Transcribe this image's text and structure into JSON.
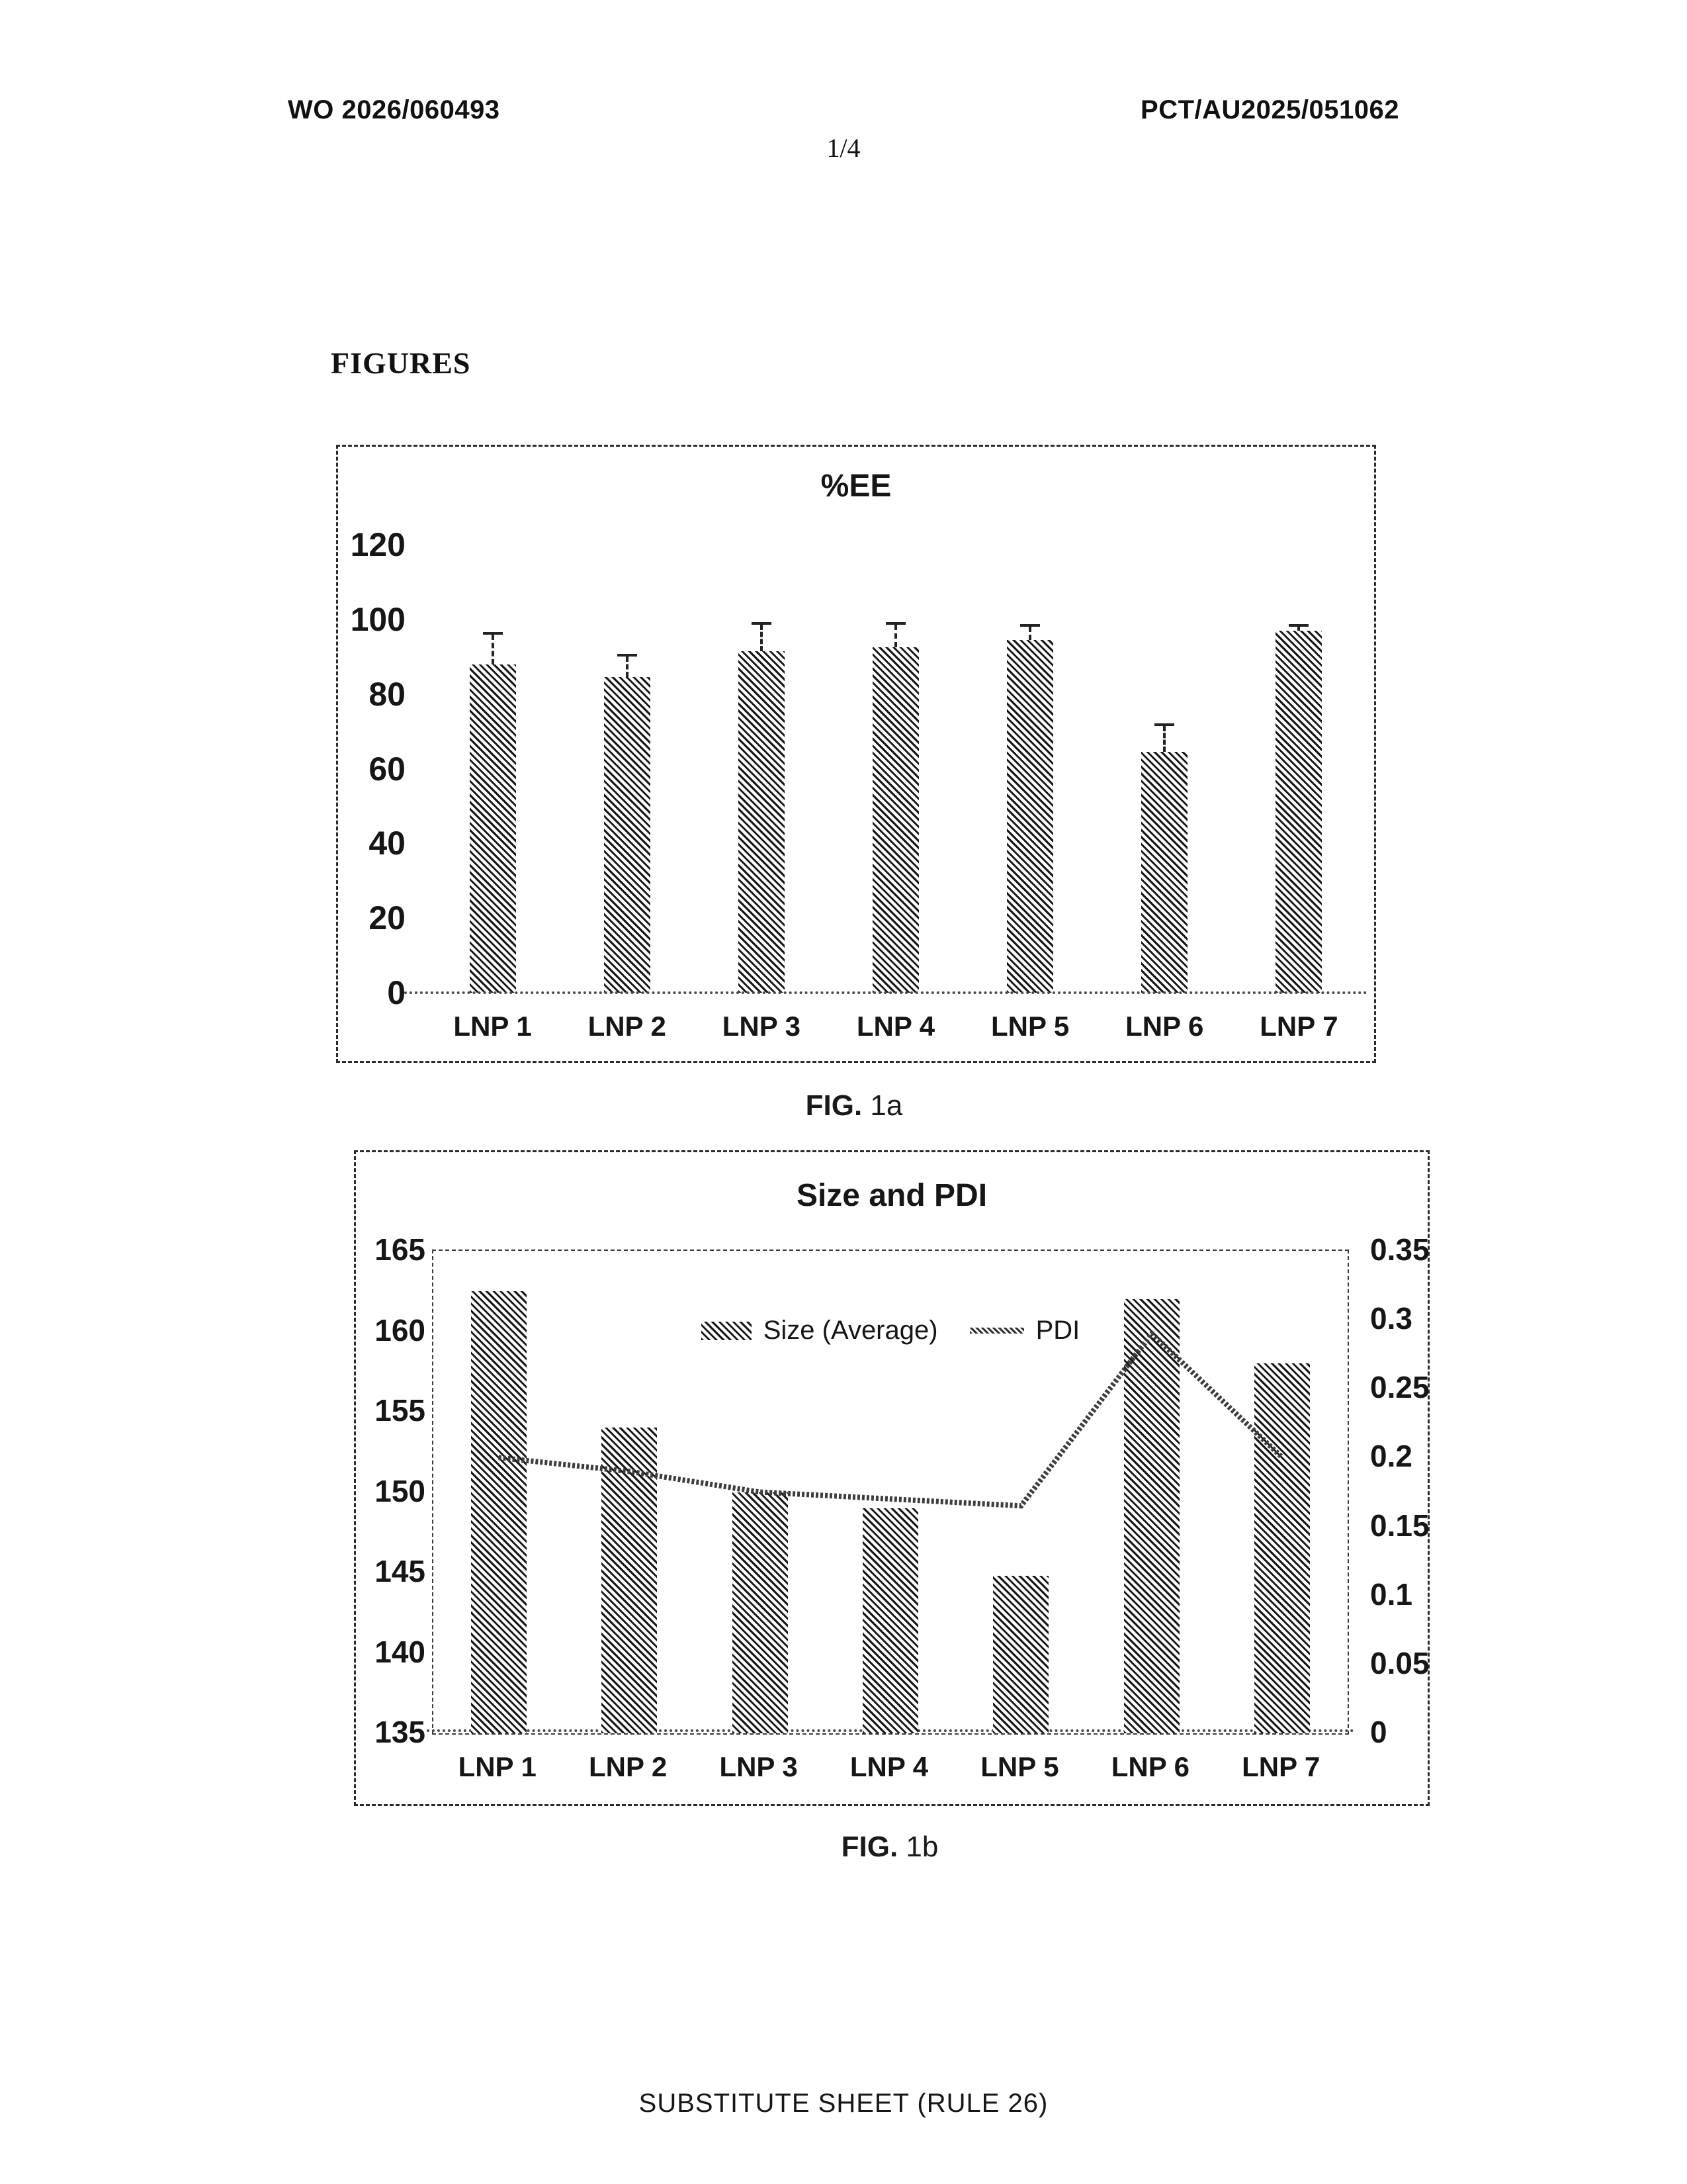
{
  "header": {
    "left": "WO 2026/060493",
    "right": "PCT/AU2025/051062",
    "page_number": "1/4"
  },
  "section_heading": "FIGURES",
  "figures": [
    {
      "caption_prefix": "FIG.",
      "caption_label": "1a"
    },
    {
      "caption_prefix": "FIG.",
      "caption_label": "1b"
    }
  ],
  "footer": "SUBSTITUTE SHEET (RULE 26)",
  "chart_data": [
    {
      "type": "bar",
      "title": "%EE",
      "categories": [
        "LNP 1",
        "LNP 2",
        "LNP 3",
        "LNP 4",
        "LNP 5",
        "LNP 6",
        "LNP 7"
      ],
      "values": [
        88,
        84.5,
        91.5,
        92.5,
        94.5,
        64.5,
        97
      ],
      "error_plus": [
        8,
        5.5,
        7,
        6,
        3.5,
        7,
        1
      ],
      "xlabel": "",
      "ylabel": "",
      "ylim": [
        0,
        120
      ],
      "yticks": [
        "0",
        "20",
        "40",
        "60",
        "80",
        "100",
        "120"
      ],
      "grid": false,
      "legend_position": "none",
      "bar_style": "diagonal-hatch",
      "ink_color": "#161616"
    },
    {
      "type": "combo-bar-line",
      "title": "Size and PDI",
      "categories": [
        "LNP 1",
        "LNP 2",
        "LNP 3",
        "LNP 4",
        "LNP 5",
        "LNP 6",
        "LNP 7"
      ],
      "series": [
        {
          "name": "Size (Average)",
          "type": "bar",
          "axis": "left",
          "values": [
            162.5,
            154,
            150,
            149,
            144.8,
            162,
            158
          ]
        },
        {
          "name": "PDI",
          "type": "line",
          "axis": "right",
          "values": [
            0.2,
            0.19,
            0.175,
            0.17,
            0.165,
            0.29,
            0.2
          ]
        }
      ],
      "left_ylim": [
        135,
        165
      ],
      "left_yticks": [
        "165",
        "160",
        "155",
        "150",
        "145",
        "140",
        "135"
      ],
      "right_ylim": [
        0,
        0.35
      ],
      "right_yticks": [
        "0.35",
        "0.3",
        "0.25",
        "0.2",
        "0.15",
        "0.1",
        "0.05",
        "0"
      ],
      "grid": false,
      "legend_position": "top-center-inside",
      "bar_style": "diagonal-hatch",
      "line_style": "hatched-dashed",
      "ink_color": "#161616"
    }
  ]
}
